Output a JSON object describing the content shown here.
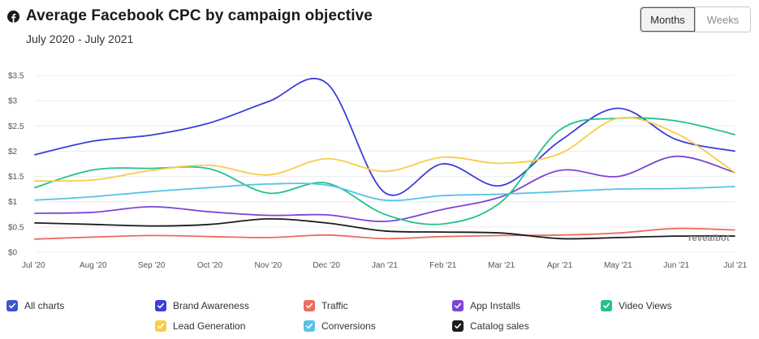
{
  "header": {
    "title": "Average Facebook CPC by campaign objective",
    "subtitle": "July 2020 - July 2021",
    "icon": "facebook-icon"
  },
  "toggle": {
    "months_label": "Months",
    "weeks_label": "Weeks",
    "selected": "Months"
  },
  "watermark": "revealbot",
  "chart_data": {
    "type": "line",
    "title": "Average Facebook CPC by campaign objective",
    "subtitle": "July 2020 - July 2021",
    "xlabel": "",
    "ylabel": "",
    "categories": [
      "Jul '20",
      "Aug '20",
      "Sep '20",
      "Oct '20",
      "Nov '20",
      "Dec '20",
      "Jan '21",
      "Feb '21",
      "Mar '21",
      "Apr '21",
      "May '21",
      "Jun '21",
      "Jul '21"
    ],
    "y_ticks": [
      "$0",
      "$0.5",
      "$1",
      "$1.5",
      "$2",
      "$2.5",
      "$3",
      "$3.5"
    ],
    "ylim": [
      0,
      3.5
    ],
    "grid": true,
    "smooth": true,
    "series": [
      {
        "name": "Brand Awareness",
        "color": "#3d3ddb",
        "values": [
          1.93,
          2.2,
          2.32,
          2.56,
          2.98,
          3.35,
          1.18,
          1.75,
          1.32,
          2.2,
          2.85,
          2.23,
          2.0
        ]
      },
      {
        "name": "Traffic",
        "color": "#ee6b5f",
        "values": [
          0.26,
          0.3,
          0.33,
          0.31,
          0.29,
          0.34,
          0.27,
          0.31,
          0.33,
          0.34,
          0.38,
          0.47,
          0.44
        ]
      },
      {
        "name": "App Installs",
        "color": "#7d44d6",
        "values": [
          0.77,
          0.79,
          0.9,
          0.8,
          0.73,
          0.74,
          0.61,
          0.85,
          1.1,
          1.62,
          1.5,
          1.9,
          1.58
        ]
      },
      {
        "name": "Video Views",
        "color": "#22c18a",
        "values": [
          1.28,
          1.63,
          1.66,
          1.65,
          1.17,
          1.37,
          0.75,
          0.56,
          1.0,
          2.42,
          2.65,
          2.6,
          2.33
        ]
      },
      {
        "name": "Lead Generation",
        "color": "#f7cd48",
        "values": [
          1.41,
          1.43,
          1.62,
          1.72,
          1.53,
          1.85,
          1.6,
          1.88,
          1.76,
          1.95,
          2.65,
          2.35,
          1.58
        ]
      },
      {
        "name": "Conversions",
        "color": "#56c3e6",
        "values": [
          1.03,
          1.1,
          1.2,
          1.28,
          1.35,
          1.33,
          1.03,
          1.12,
          1.15,
          1.2,
          1.25,
          1.26,
          1.3
        ]
      },
      {
        "name": "Catalog sales",
        "color": "#1c1c1c",
        "values": [
          0.58,
          0.55,
          0.52,
          0.55,
          0.66,
          0.58,
          0.42,
          0.4,
          0.38,
          0.27,
          0.29,
          0.32,
          0.32
        ]
      }
    ]
  },
  "legend": {
    "items": [
      {
        "label": "All charts",
        "color": "#3d56c9"
      },
      {
        "label": "Brand Awareness",
        "color": "#3d3ddb"
      },
      {
        "label": "Traffic",
        "color": "#ee6b5f"
      },
      {
        "label": "App Installs",
        "color": "#7d44d6"
      },
      {
        "label": "Video Views",
        "color": "#22c18a"
      },
      {
        "label": "Lead Generation",
        "color": "#f7cd48"
      },
      {
        "label": "Conversions",
        "color": "#56c3e6"
      },
      {
        "label": "Catalog sales",
        "color": "#1c1c1c"
      }
    ]
  }
}
